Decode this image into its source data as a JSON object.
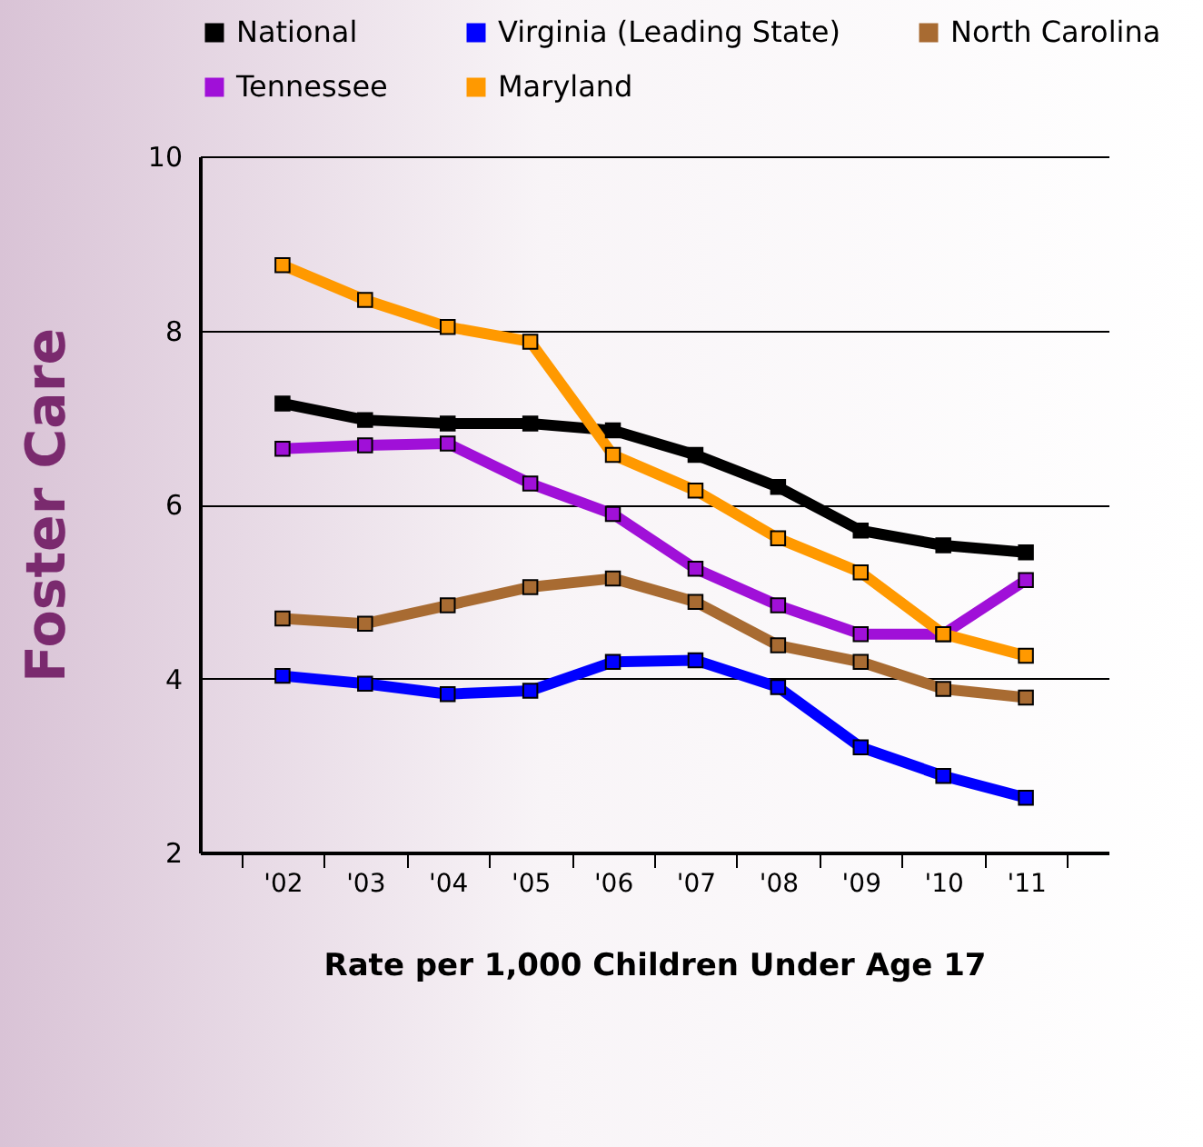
{
  "chart_data": {
    "type": "line",
    "ylabel": "Foster Care",
    "xlabel": "Rate per 1,000 Children Under Age 17",
    "categories": [
      "'02",
      "'03",
      "'04",
      "'05",
      "'06",
      "'07",
      "'08",
      "'09",
      "'10",
      "'11"
    ],
    "series": [
      {
        "name": "National",
        "color": "#000000",
        "values": [
          7.16,
          6.97,
          6.93,
          6.93,
          6.85,
          6.57,
          6.2,
          5.7,
          5.53,
          5.45
        ]
      },
      {
        "name": "Virginia (Leading State)",
        "color": "#0000ff",
        "values": [
          4.03,
          3.94,
          3.82,
          3.86,
          4.19,
          4.21,
          3.9,
          3.21,
          2.88,
          2.63
        ]
      },
      {
        "name": "North Carolina",
        "color": "#a86b32",
        "values": [
          4.69,
          4.63,
          4.84,
          5.05,
          5.15,
          4.88,
          4.38,
          4.19,
          3.88,
          3.78
        ]
      },
      {
        "name": "Tennessee",
        "color": "#a010d8",
        "values": [
          6.64,
          6.68,
          6.7,
          6.24,
          5.89,
          5.26,
          4.84,
          4.51,
          4.51,
          5.13
        ]
      },
      {
        "name": "Maryland",
        "color": "#ff9900",
        "values": [
          8.75,
          8.35,
          8.04,
          7.87,
          6.57,
          6.16,
          5.61,
          5.22,
          4.51,
          4.26
        ]
      }
    ],
    "ylim": [
      2,
      10
    ],
    "yticks": [
      2,
      4,
      6,
      8,
      10
    ],
    "grid": "y",
    "legend": "top",
    "marker": "square",
    "line_style": "solid"
  }
}
